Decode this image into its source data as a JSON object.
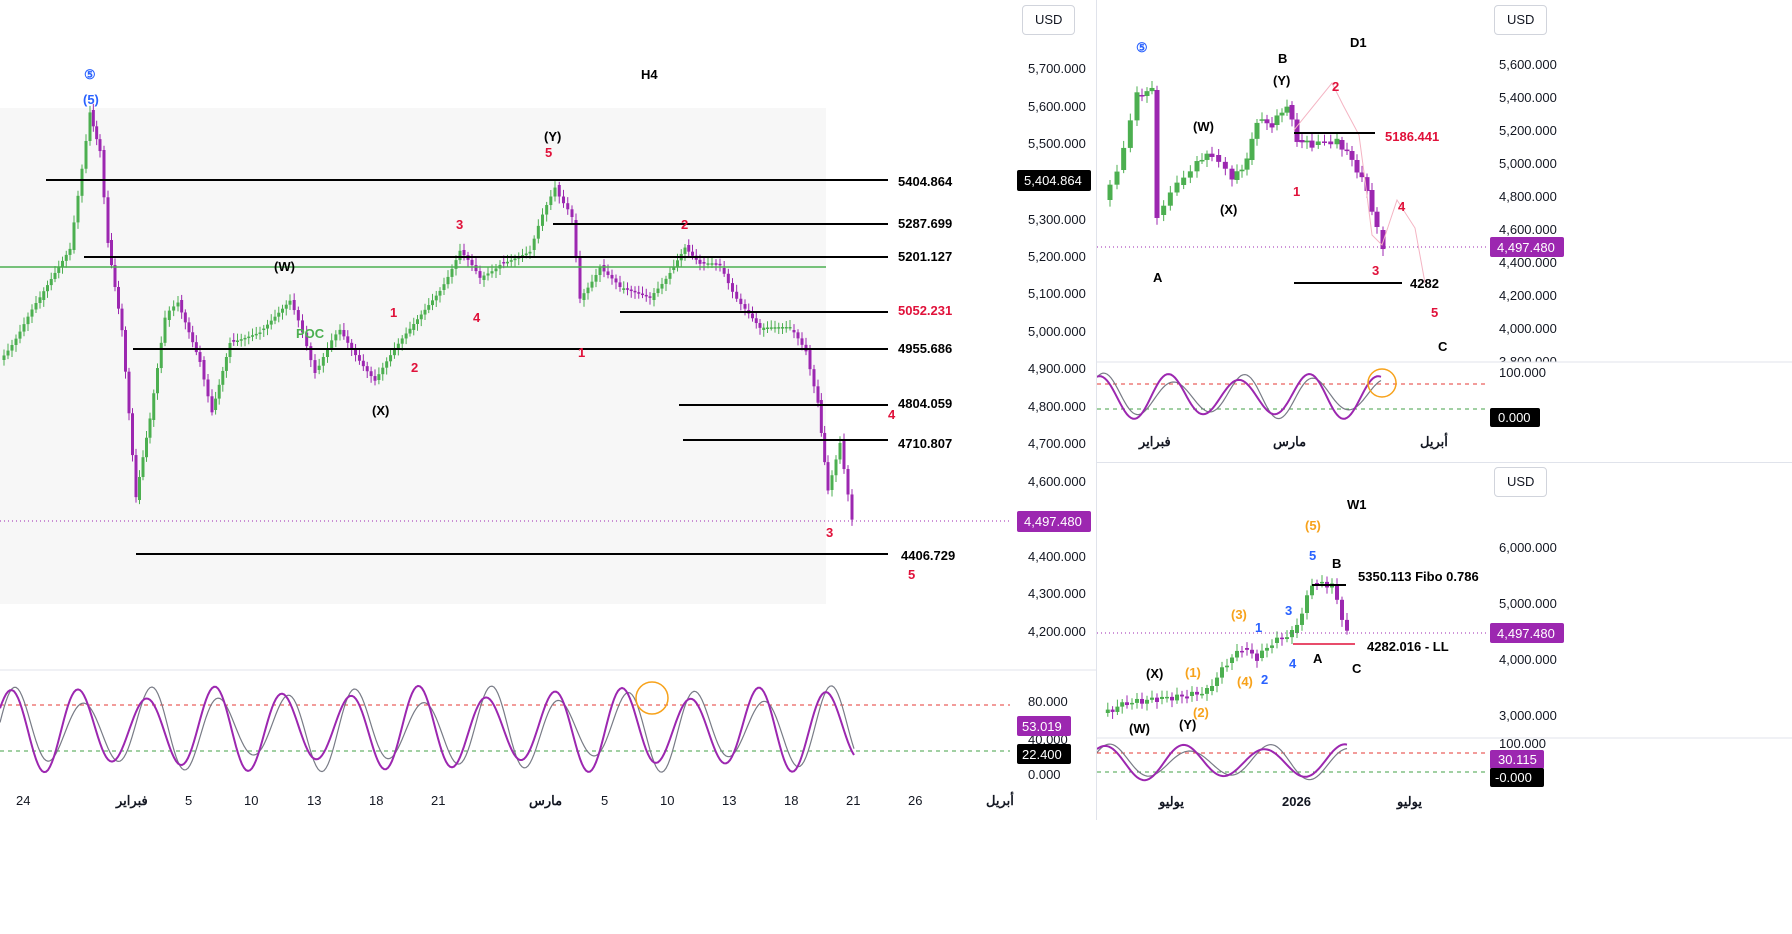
{
  "colors": {
    "bull": "#4caf50",
    "bear": "#9c27b0",
    "level": "#000000",
    "poc": "#4caf50",
    "osc_main": "#9c27b0",
    "osc_signal": "#787b86",
    "overbought": "#e53935",
    "oversold": "#43a047",
    "price_badge": "#9c27b0",
    "current_line": "#9c27b0",
    "wave_red": "#e0113a",
    "wave_blue": "#2962ff",
    "wave_orange": "#f7a21b",
    "highlight_circle": "#f7a21b"
  },
  "charts": {
    "h4": {
      "timeframe": "H4",
      "currency": "USD",
      "price_ticks": [
        "5,700.000",
        "5,600.000",
        "5,500.000",
        "5,400.000",
        "5,300.000",
        "5,200.000",
        "5,100.000",
        "5,000.000",
        "4,900.000",
        "4,800.000",
        "4,700.000",
        "4,600.000",
        "4,500.000",
        "4,400.000",
        "4,300.000",
        "4,200.000"
      ],
      "time_ticks": [
        "24",
        "فبراير",
        "5",
        "10",
        "13",
        "18",
        "21",
        "مارس",
        "5",
        "10",
        "13",
        "18",
        "21",
        "26",
        "أبريل"
      ],
      "last_price_label": "4,497.480",
      "marked_level_label": "5,404.864",
      "poc_label": "POC",
      "levels": [
        "5404.864",
        "5287.699",
        "5201.127",
        "5052.231",
        "4955.686",
        "4804.059",
        "4710.807",
        "4406.729"
      ],
      "wave_labels": [
        "⑤",
        "(5)",
        "(Y)",
        "5",
        "(W)",
        "(X)",
        "1",
        "2",
        "3",
        "4",
        "1",
        "2",
        "3",
        "4",
        "5"
      ],
      "oscillator": {
        "ticks": [
          "80.000",
          "40.000",
          "0.000"
        ],
        "value_main": "53.019",
        "value_signal": "22.400"
      }
    },
    "d1": {
      "timeframe": "D1",
      "currency": "USD",
      "price_ticks": [
        "5,600.000",
        "5,400.000",
        "5,200.000",
        "5,000.000",
        "4,800.000",
        "4,600.000",
        "4,400.000",
        "4,200.000",
        "4,000.000",
        "3,800.000"
      ],
      "time_ticks": [
        "فبراير",
        "مارس",
        "أبريل"
      ],
      "last_price_label": "4,497.480",
      "levels": [
        "5186.441",
        "4282"
      ],
      "wave_labels": [
        "⑤",
        "B",
        "(Y)",
        "(W)",
        "(X)",
        "A",
        "1",
        "2",
        "3",
        "4",
        "5",
        "C"
      ],
      "oscillator": {
        "ticks": [
          "100.000"
        ],
        "value_main": "0.000"
      }
    },
    "w1": {
      "timeframe": "W1",
      "currency": "USD",
      "price_ticks": [
        "6,000.000",
        "5,000.000",
        "4,000.000",
        "3,000.000"
      ],
      "time_ticks": [
        "يوليو",
        "2026",
        "يوليو"
      ],
      "last_price_label": "4,497.480",
      "levels": [
        "5350.113 Fibo 0.786",
        "4282.016 - LL"
      ],
      "wave_labels": [
        "(5)",
        "5",
        "B",
        "(3)",
        "1",
        "3",
        "(X)",
        "(1)",
        "(W)",
        "(Y)",
        "(2)",
        "(4)",
        "2",
        "4",
        "A",
        "C"
      ],
      "oscillator": {
        "ticks": [
          "100.000"
        ],
        "value_main": "30.115",
        "value_signal": "-0.000"
      }
    }
  }
}
